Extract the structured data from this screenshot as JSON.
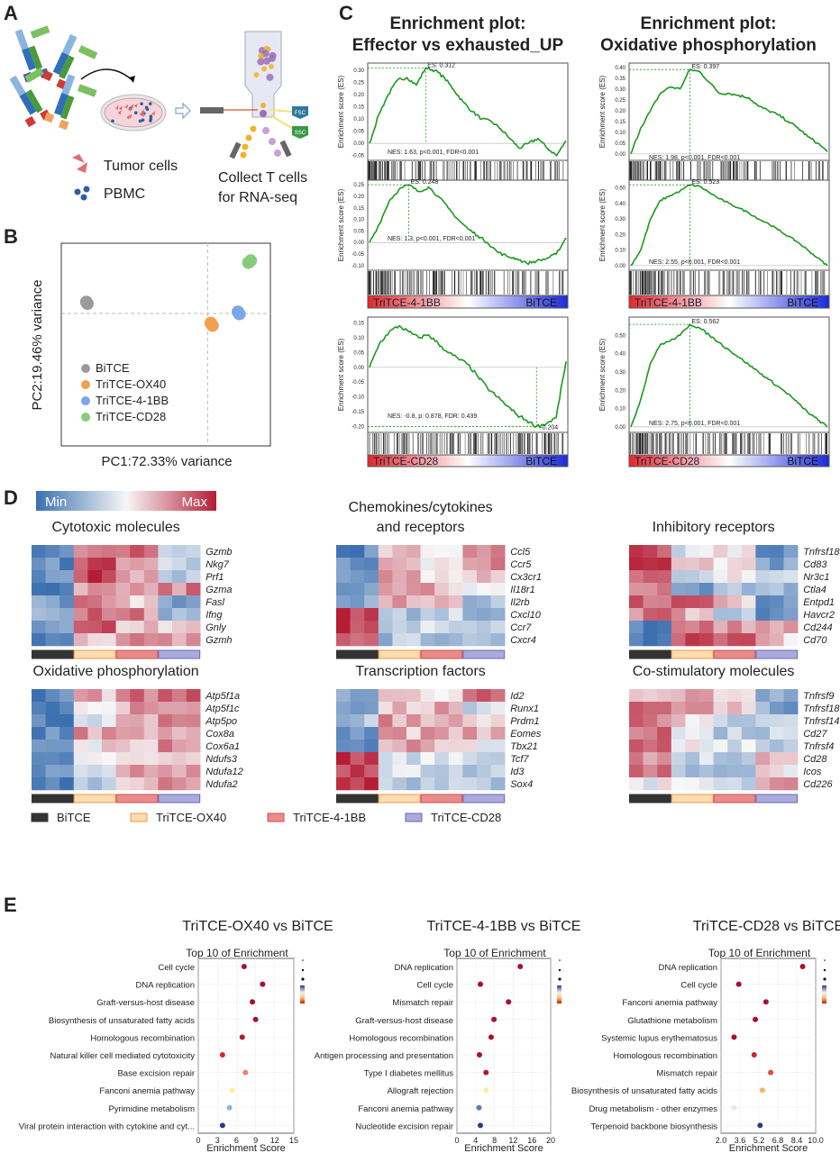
{
  "panel_labels": {
    "a": "A",
    "b": "B",
    "c": "C",
    "d": "D",
    "e": "E"
  },
  "panel_a": {
    "tumor_label": "Tumor cells",
    "pbmc_label": "PBMC",
    "collect_line1": "Collect T cells",
    "collect_line2": "for RNA-seq",
    "fsc": "FSC",
    "ssc": "SSC",
    "colors": {
      "tumor": "#e07070",
      "pbmc": "#2f5fa0",
      "dish": "#f6d5da"
    }
  },
  "groups": [
    {
      "name": "BiTCE",
      "color": "#333333",
      "border": "#333333",
      "pca": "#9a9a9a"
    },
    {
      "name": "TriTCE-OX40",
      "color": "#fddcb0",
      "border": "#f09a48",
      "pca": "#f0a050"
    },
    {
      "name": "TriTCE-4-1BB",
      "color": "#ea8a8a",
      "border": "#c85050",
      "pca": "#7aa7e8"
    },
    {
      "name": "TriTCE-CD28",
      "color": "#aaaadc",
      "border": "#6a6ab4",
      "pca": "#86cc7c"
    }
  ],
  "chart_data": [
    {
      "id": "pca",
      "type": "scatter",
      "xlabel": "PC1:72.33% variance",
      "ylabel": "PC2:19.46% variance",
      "xlim": [
        -70,
        30
      ],
      "ylim": [
        -32,
        17
      ],
      "ref_lines": [
        0,
        0
      ],
      "grid": false,
      "legend": "bottom-left",
      "series": [
        {
          "name": "BiTCE",
          "points": [
            [
              -58,
              2.8
            ],
            [
              -57.5,
              2.4
            ]
          ]
        },
        {
          "name": "TriTCE-OX40",
          "points": [
            [
              1.5,
              -2.3
            ],
            [
              2.3,
              -2.9
            ]
          ]
        },
        {
          "name": "TriTCE-4-1BB",
          "points": [
            [
              14.5,
              0.4
            ],
            [
              15.2,
              -0.1
            ]
          ]
        },
        {
          "name": "TriTCE-CD28",
          "points": [
            [
              19.5,
              12.3
            ],
            [
              20.6,
              12.8
            ]
          ]
        }
      ]
    },
    {
      "id": "gsea",
      "type": "line",
      "titles": [
        [
          "Enrichment plot:",
          "Effector vs exhausted_UP"
        ],
        [
          "Enrichment plot:",
          "Oxidative phosphorylation"
        ]
      ],
      "ylabel": "Enrichment score (ES)",
      "line_color": "#1a9a1a",
      "panels": [
        {
          "col": 0,
          "row": 0,
          "group": "TriTCE-OX40",
          "ref": "BiTCE",
          "es_label": "ES: 0.312",
          "nes_label": "NES: 1.63, p<0.001, FDR<0.001",
          "ylim": [
            -0.07,
            0.33
          ],
          "yticks": [
            "-0.05",
            "0.00",
            "0.05",
            "0.10",
            "0.15",
            "0.20",
            "0.25",
            "0.30"
          ],
          "curve": [
            0,
            0.12,
            0.2,
            0.26,
            0.27,
            0.24,
            0.31,
            0.3,
            0.27,
            0.22,
            0.17,
            0.13,
            0.1,
            0.09,
            0.06,
            0.02,
            -0.02,
            0.0,
            0.02,
            -0.02,
            -0.05,
            0.01
          ]
        },
        {
          "col": 1,
          "row": 0,
          "group": "TriTCE-OX40",
          "ref": "BiTCE",
          "es_label": "ES: 0.397",
          "nes_label": "NES: 1.98, p<0.001, FDR<0.001",
          "ylim": [
            -0.03,
            0.42
          ],
          "yticks": [
            "0.00",
            "0.05",
            "0.10",
            "0.15",
            "0.20",
            "0.25",
            "0.30",
            "0.35",
            "0.40"
          ],
          "curve": [
            0,
            0.12,
            0.2,
            0.28,
            0.31,
            0.3,
            0.39,
            0.38,
            0.33,
            0.28,
            0.28,
            0.27,
            0.26,
            0.22,
            0.2,
            0.18,
            0.15,
            0.12,
            0.08,
            0.05,
            0.01
          ]
        },
        {
          "col": 0,
          "row": 1,
          "group": "TriTCE-4-1BB",
          "ref": "BiTCE",
          "es_label": "ES: 0.248",
          "nes_label": "NES: 1.3, p<0.001, FDR<0.001",
          "ylim": [
            -0.12,
            0.27
          ],
          "yticks": [
            "-0.10",
            "-0.05",
            "0.00",
            "0.05",
            "0.10",
            "0.15",
            "0.20",
            "0.25"
          ],
          "curve": [
            0,
            0.08,
            0.18,
            0.23,
            0.25,
            0.22,
            0.24,
            0.2,
            0.15,
            0.1,
            0.06,
            0.03,
            0.0,
            -0.04,
            -0.06,
            -0.07,
            -0.09,
            -0.08,
            -0.07,
            -0.05,
            0.02
          ]
        },
        {
          "col": 1,
          "row": 1,
          "group": "TriTCE-4-1BB",
          "ref": "BiTCE",
          "es_label": "ES: 0.523",
          "nes_label": "NES: 2.55, p<0.001, FDR<0.001",
          "ylim": [
            -0.03,
            0.55
          ],
          "yticks": [
            "0.00",
            "0.10",
            "0.20",
            "0.30",
            "0.40",
            "0.50"
          ],
          "curve": [
            0,
            0.1,
            0.3,
            0.42,
            0.45,
            0.48,
            0.52,
            0.51,
            0.47,
            0.43,
            0.4,
            0.37,
            0.34,
            0.3,
            0.27,
            0.23,
            0.19,
            0.15,
            0.1,
            0.05,
            0.0
          ]
        },
        {
          "col": 0,
          "row": 2,
          "group": "TriTCE-CD28",
          "ref": "BiTCE",
          "es_label": "-0.204",
          "nes_label": "NES: -0.8, p: 0.878, FDR: 0.439",
          "ylim": [
            -0.22,
            0.17
          ],
          "yticks": [
            "-0.20",
            "-0.15",
            "-0.10",
            "-0.05",
            "0.00",
            "0.05",
            "0.10",
            "0.15"
          ],
          "curve": [
            0,
            0.08,
            0.12,
            0.14,
            0.12,
            0.1,
            0.11,
            0.08,
            0.05,
            0.03,
            0.01,
            -0.03,
            -0.07,
            -0.1,
            -0.13,
            -0.16,
            -0.18,
            -0.2,
            -0.19,
            -0.17,
            0.02
          ]
        },
        {
          "col": 1,
          "row": 2,
          "group": "TriTCE-CD28",
          "ref": "BiTCE",
          "es_label": "ES: 0.562",
          "nes_label": "NES: 2.75, p<0.001, FDR<0.001",
          "ylim": [
            -0.03,
            0.6
          ],
          "yticks": [
            "0.00",
            "0.10",
            "0.20",
            "0.30",
            "0.40",
            "0.50"
          ],
          "curve": [
            0,
            0.15,
            0.35,
            0.45,
            0.47,
            0.5,
            0.56,
            0.54,
            0.5,
            0.46,
            0.42,
            0.38,
            0.34,
            0.3,
            0.26,
            0.22,
            0.18,
            0.13,
            0.08,
            0.04,
            0.0
          ]
        }
      ]
    },
    {
      "id": "heatmaps",
      "type": "heatmap",
      "scale": {
        "min_label": "Min",
        "max_label": "Max",
        "low": "#3b6fb0",
        "mid": "#f7f7f7",
        "high": "#b51d35"
      },
      "columns_per_group": 3,
      "maps": [
        {
          "title": [
            "Cytotoxic molecules"
          ],
          "genes": [
            "Gzmb",
            "Nkg7",
            "Prf1",
            "Gzma",
            "Fasl",
            "Ifng",
            "Gnly",
            "Gzmh"
          ],
          "group_means": [
            [
              -0.8,
              0.6,
              0.6,
              -0.4
            ],
            [
              -0.8,
              0.8,
              0.3,
              -0.3
            ],
            [
              -0.8,
              0.9,
              0.3,
              -0.4
            ],
            [
              -0.9,
              0.3,
              0.3,
              0.5
            ],
            [
              -0.6,
              0.5,
              0.2,
              -0.6
            ],
            [
              -0.6,
              0.6,
              0.5,
              -0.4
            ],
            [
              -0.7,
              0.8,
              0.3,
              0.3
            ],
            [
              -0.8,
              0.1,
              0.6,
              0.4
            ]
          ]
        },
        {
          "title": [
            "Chemokines/cytokines",
            "and receptors"
          ],
          "genes": [
            "Ccl5",
            "Ccr5",
            "Cx3cr1",
            "Il18r1",
            "Il2rb",
            "Cxcl10",
            "Ccr7",
            "Cxcr4"
          ],
          "group_means": [
            [
              -0.8,
              0.3,
              0.0,
              0.6
            ],
            [
              -0.8,
              0.3,
              0.1,
              0.6
            ],
            [
              -0.8,
              0.4,
              0.1,
              0.2
            ],
            [
              -0.8,
              0.5,
              0.3,
              0.1
            ],
            [
              -0.6,
              0.3,
              0.4,
              -0.4
            ],
            [
              0.9,
              -0.4,
              -0.2,
              -0.5
            ],
            [
              0.9,
              -0.2,
              -0.1,
              -0.4
            ],
            [
              0.7,
              -0.4,
              -0.4,
              -0.3
            ]
          ]
        },
        {
          "title": [
            "Inhibitory receptors"
          ],
          "genes": [
            "Tnfrsf18",
            "Cd83",
            "Nr3c1",
            "Ctla4",
            "Entpd1",
            "Havcr2",
            "Cd244",
            "Cd70"
          ],
          "group_means": [
            [
              0.8,
              -0.1,
              0.1,
              -0.7
            ],
            [
              0.9,
              0.1,
              0.1,
              -0.6
            ],
            [
              0.6,
              -0.3,
              0.1,
              -0.3
            ],
            [
              0.6,
              -0.6,
              -0.4,
              -0.5
            ],
            [
              0.6,
              0.6,
              0.3,
              -0.8
            ],
            [
              0.6,
              0.3,
              -0.3,
              -0.8
            ],
            [
              -0.9,
              0.5,
              0.5,
              0.3
            ],
            [
              -0.9,
              0.7,
              0.6,
              0.2
            ]
          ]
        },
        {
          "title": [
            "Oxidative phosphorylation"
          ],
          "genes": [
            "Atp5f1a",
            "Atp5f1c",
            "Atp5po",
            "Cox8a",
            "Cox6a1",
            "Ndufs3",
            "Ndufa12",
            "Ndufa2"
          ],
          "group_means": [
            [
              -0.8,
              0.3,
              0.6,
              0.6
            ],
            [
              -0.8,
              0.0,
              0.4,
              0.6
            ],
            [
              -0.8,
              -0.2,
              0.3,
              0.5
            ],
            [
              -0.8,
              0.4,
              0.4,
              0.3
            ],
            [
              -0.9,
              0.1,
              0.3,
              0.5
            ],
            [
              -0.9,
              -0.1,
              0.3,
              0.3
            ],
            [
              -0.8,
              -0.1,
              0.4,
              0.3
            ],
            [
              -0.8,
              -0.3,
              0.2,
              0.4
            ]
          ]
        },
        {
          "title": [
            "Transcription factors"
          ],
          "genes": [
            "Id2",
            "Runx1",
            "Prdm1",
            "Eomes",
            "Tbx21",
            "Tcf7",
            "Id3",
            "Sox4"
          ],
          "group_means": [
            [
              -0.6,
              0.2,
              0.1,
              0.6
            ],
            [
              -0.7,
              0.2,
              0.3,
              -0.2
            ],
            [
              -0.4,
              0.4,
              0.4,
              0.1
            ],
            [
              -0.7,
              0.3,
              0.4,
              0.3
            ],
            [
              -0.7,
              0.4,
              0.3,
              0.0
            ],
            [
              0.8,
              -0.2,
              -0.2,
              -0.2
            ],
            [
              0.8,
              -0.1,
              -0.2,
              -0.3
            ],
            [
              0.8,
              -0.3,
              -0.3,
              -0.3
            ]
          ]
        },
        {
          "title": [
            "Co-stimulatory molecules"
          ],
          "genes": [
            "Tnfrsf9",
            "Tnfrsf18",
            "Tnfrsf14",
            "Cd27",
            "Tnfrsf4",
            "Cd28",
            "Icos",
            "Cd226"
          ],
          "group_means": [
            [
              0.2,
              0.4,
              0.3,
              -0.6
            ],
            [
              0.6,
              0.3,
              0.2,
              -0.6
            ],
            [
              0.6,
              0.1,
              -0.2,
              -0.3
            ],
            [
              0.7,
              0.0,
              -0.3,
              -0.3
            ],
            [
              0.6,
              0.0,
              -0.2,
              -0.5
            ],
            [
              0.4,
              -0.2,
              -0.3,
              0.3
            ],
            [
              0.5,
              -0.3,
              -0.4,
              0.1
            ],
            [
              0.0,
              -0.2,
              -0.3,
              0.5
            ]
          ]
        }
      ]
    },
    {
      "id": "kegg",
      "type": "scatter",
      "subtitle": "Top 10 of  Enrichment",
      "xlabel": "Enrichment Score",
      "grid": true,
      "legend": "right",
      "panels": [
        {
          "title": "TriTCE-OX40 vs BiTCE",
          "xlim": [
            0,
            15
          ],
          "xticks": [
            "0",
            "3",
            "6",
            "9",
            "12",
            "15"
          ],
          "terms": [
            "Cell cycle",
            "DNA replication",
            "Graft-versus-host disease",
            "Biosynthesis of unsaturated fatty acids",
            "Homologous recombination",
            "Natural killer cell mediated cytotoxicity",
            "Base excision repair",
            "Fanconi anemia pathway",
            "Pyrimidine metabolism",
            "Viral protein interaction with cytokine and cyt..."
          ],
          "values": [
            7.2,
            10.1,
            8.5,
            9.0,
            6.9,
            3.8,
            7.4,
            5.3,
            4.9,
            3.8
          ],
          "colors": [
            "#a8102c",
            "#a8102c",
            "#a8102c",
            "#a8102c",
            "#b01a2c",
            "#d42a2a",
            "#e8826a",
            "#fbf0a0",
            "#8fb4de",
            "#2c3a8c"
          ]
        },
        {
          "title": "TriTCE-4-1BB vs BiTCE",
          "xlim": [
            0,
            20
          ],
          "xticks": [
            "0",
            "4",
            "8",
            "12",
            "16",
            "20"
          ],
          "terms": [
            "DNA replication",
            "Cell cycle",
            "Mismatch repair",
            "Graft-versus-host disease",
            "Homologous recombination",
            "Antigen processing and presentation",
            "Type I diabetes mellitus",
            "Allograft rejection",
            "Fanconi anemia pathway",
            "Nucleotide excision repair"
          ],
          "values": [
            13.5,
            5.0,
            11.0,
            7.9,
            7.3,
            4.8,
            6.2,
            6.2,
            4.7,
            5.0
          ],
          "colors": [
            "#a8102c",
            "#a8102c",
            "#a8102c",
            "#a8102c",
            "#a8102c",
            "#a8102c",
            "#b01a2c",
            "#fbf0a0",
            "#5a7ab8",
            "#2c3a8c"
          ]
        },
        {
          "title": "TriTCE-CD28 vs BiTCE",
          "xlim": [
            2,
            10
          ],
          "xticks": [
            "2.0",
            "3.6",
            "5.2",
            "6.8",
            "8.4",
            "10.0"
          ],
          "terms": [
            "DNA replication",
            "Cell cycle",
            "Fanconi anemia pathway",
            "Glutathione metabolism",
            "Systemic lupus erythematosus",
            "Homologous recombination",
            "Mismatch repair",
            "Biosynthesis of unsaturated fatty acids",
            "Drug metabolism - other enzymes",
            "Terpenoid backbone biosynthesis"
          ],
          "values": [
            8.9,
            3.5,
            5.8,
            4.9,
            3.1,
            4.8,
            6.2,
            5.5,
            3.1,
            5.3
          ],
          "colors": [
            "#a8102c",
            "#a8102c",
            "#a8102c",
            "#a8102c",
            "#a8102c",
            "#c82828",
            "#d8503a",
            "#f5b860",
            "#e4ecf0",
            "#2c3a8c"
          ]
        }
      ]
    }
  ]
}
